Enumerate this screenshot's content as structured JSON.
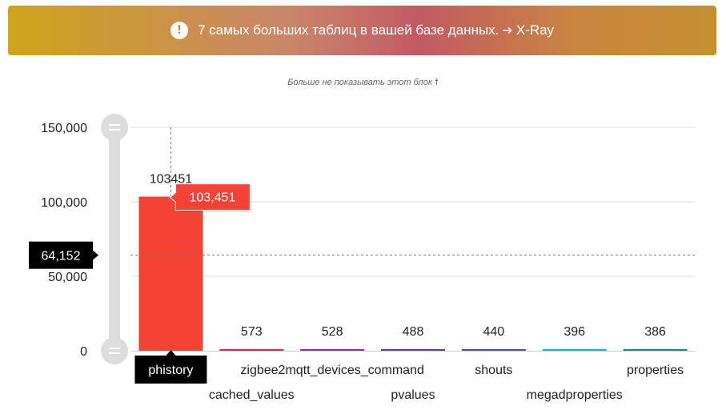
{
  "banner": {
    "message": "7 самых больших таблиц в вашей базе данных.",
    "link_label": "X-Ray",
    "icon": "exclamation-icon"
  },
  "dismiss": {
    "label": "Больше не показывать этот блок",
    "icon": "arrow-up-icon"
  },
  "chart_data": {
    "type": "bar",
    "categories": [
      "phistory",
      "cached_values",
      "zigbee2mqtt_devices_command",
      "pvalues",
      "shouts",
      "megadproperties",
      "properties"
    ],
    "values": [
      103451,
      573,
      528,
      488,
      440,
      396,
      386
    ],
    "data_labels": [
      "103451",
      "573",
      "528",
      "488",
      "440",
      "396",
      "386"
    ],
    "bar_colors": [
      "#f44336",
      "#e91e63",
      "#9c27b0",
      "#673ab7",
      "#3f51b5",
      "#00bcd4",
      "#009688"
    ],
    "ylim": [
      0,
      150000
    ],
    "yticks": [
      0,
      50000,
      100000,
      150000
    ],
    "ytick_labels": [
      "0",
      "50,000",
      "100,000",
      "150,000"
    ],
    "grid": true,
    "tooltip": {
      "category": "phistory",
      "value_label": "103,451",
      "color": "#f44336"
    },
    "crosshair": {
      "y_value": 64152,
      "y_label": "64,152"
    }
  }
}
